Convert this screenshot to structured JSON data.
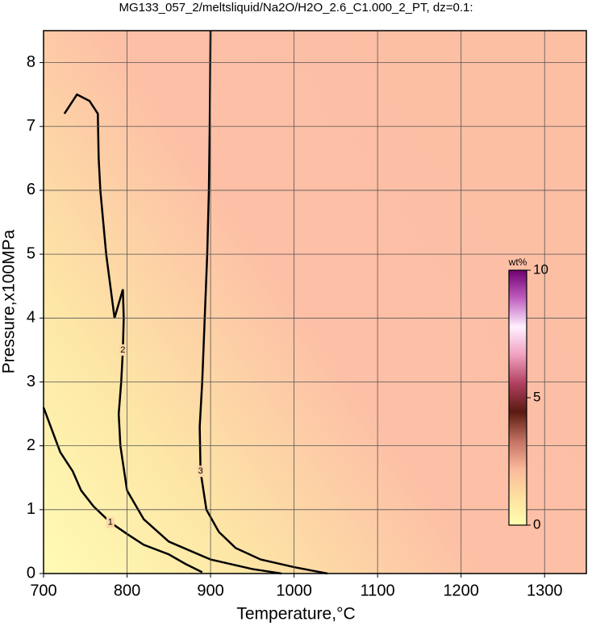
{
  "chart_data": {
    "type": "contour",
    "title": "MG133_057_2/meltsliquid/Na2O/H2O_2.6_C1.000_2_PT, dz=0.1:",
    "x_label": "Temperature,°C",
    "y_label": "Pressure,x100MPa",
    "xlim": [
      700,
      1350
    ],
    "ylim": [
      0,
      8.5
    ],
    "xticks": [
      700,
      800,
      900,
      1000,
      1100,
      1200,
      1300
    ],
    "yticks": [
      0,
      1,
      2,
      3,
      4,
      5,
      6,
      7,
      8
    ],
    "grid": true,
    "contours": [
      {
        "level": 1,
        "x": [
          700,
          720,
          735,
          745,
          760,
          780,
          800,
          820,
          850,
          870,
          890
        ],
        "y": [
          2.6,
          1.9,
          1.6,
          1.3,
          1.05,
          0.8,
          0.62,
          0.45,
          0.3,
          0.15,
          0.02
        ]
      },
      {
        "level": 2,
        "x": [
          725,
          740,
          755,
          765,
          766,
          768,
          775,
          785,
          795,
          796,
          795,
          793,
          790,
          792,
          800,
          820,
          850,
          900,
          950,
          985
        ],
        "y": [
          7.2,
          7.5,
          7.4,
          7.2,
          6.5,
          6,
          5,
          4,
          4.45,
          4,
          3.5,
          3,
          2.5,
          2,
          1.3,
          0.85,
          0.5,
          0.22,
          0.07,
          0
        ]
      },
      {
        "level": 3,
        "x": [
          900,
          899,
          898,
          896,
          893,
          890,
          887,
          888,
          895,
          910,
          930,
          960,
          1000,
          1040
        ],
        "y": [
          8.5,
          7,
          6,
          5,
          4,
          3,
          2.3,
          1.6,
          1,
          0.65,
          0.4,
          0.22,
          0.1,
          0
        ]
      }
    ],
    "colorbar": {
      "label": "wt%",
      "clim": [
        0,
        10
      ],
      "ticks": [
        0,
        5,
        10
      ],
      "colors": [
        "#ffffb0",
        "#fde0a0",
        "#fbb89a",
        "#c07060",
        "#5a1a10",
        "#b04060",
        "#f0a0c0",
        "#fff0ff",
        "#c060c0",
        "#700070"
      ]
    }
  }
}
